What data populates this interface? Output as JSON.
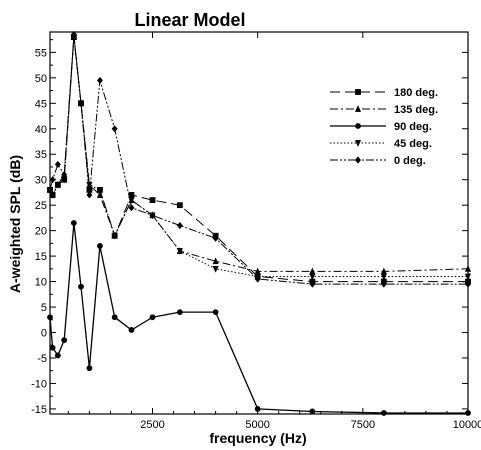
{
  "chart_data": {
    "type": "line",
    "title": "Linear Model",
    "xlabel": "frequency (Hz)",
    "ylabel": "A-weighted SPL (dB)",
    "xlim": [
      63,
      10000
    ],
    "ylim": [
      -16,
      59
    ],
    "x_ticks": [
      2500,
      5000,
      7500,
      10000
    ],
    "x_tick_labels": [
      "2500",
      "5000",
      "7500",
      "10000"
    ],
    "y_ticks": [
      -15,
      -10,
      -5,
      0,
      5,
      10,
      15,
      20,
      25,
      30,
      35,
      40,
      45,
      50,
      55
    ],
    "y_tick_labels": [
      "-15",
      "-10",
      "-5",
      "0",
      "5",
      "10",
      "15",
      "20",
      "25",
      "30",
      "35",
      "40",
      "45",
      "50",
      "55"
    ],
    "grid": false,
    "legend_position": "top-right",
    "x": [
      63,
      125,
      250,
      400,
      630,
      800,
      1000,
      1250,
      1600,
      2000,
      2500,
      3150,
      4000,
      5000,
      6300,
      8000,
      10000
    ],
    "series": [
      {
        "name": "180 deg.",
        "dash": "10,5",
        "marker": "square",
        "values": [
          28,
          27,
          29,
          30,
          58,
          45,
          28,
          28,
          19,
          27,
          26,
          25,
          19,
          11,
          10,
          10,
          10
        ]
      },
      {
        "name": "135 deg.",
        "dash": "8,3,2,3",
        "marker": "triangle",
        "values": [
          28,
          27,
          29,
          31,
          58,
          45,
          29,
          27,
          19,
          26,
          23,
          16,
          14,
          12,
          12,
          12,
          12.5
        ]
      },
      {
        "name": "90 deg.",
        "dash": "none",
        "marker": "circle",
        "values": [
          3,
          -3,
          -4.5,
          -1.5,
          21.5,
          9,
          -7,
          17,
          3,
          0.5,
          3,
          4,
          4,
          -15,
          -15.5,
          -15.8,
          -15.8
        ]
      },
      {
        "name": "45 deg.",
        "dash": "1.5,2",
        "marker": "triangle-down",
        "values": [
          28,
          27,
          29,
          30,
          58,
          45,
          29,
          28,
          19,
          26,
          23,
          16,
          12.5,
          11,
          11,
          11,
          11
        ]
      },
      {
        "name": "0 deg.",
        "dash": "8,2,2,2,2,2",
        "marker": "diamond",
        "values": [
          28,
          30,
          33,
          31,
          58.5,
          45,
          27,
          49.5,
          40,
          24.5,
          23,
          21,
          18.5,
          10.5,
          9.5,
          9.5,
          9.5
        ]
      }
    ]
  }
}
